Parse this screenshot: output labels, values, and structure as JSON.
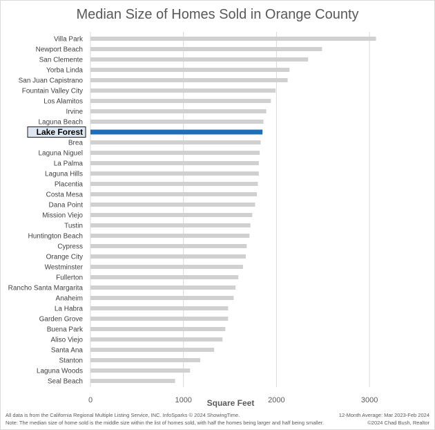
{
  "chart_data": {
    "type": "bar",
    "orientation": "horizontal",
    "title": "Median Size of Homes Sold in Orange County",
    "xlabel": "Square Feet",
    "ylabel": "",
    "xlim": [
      0,
      3200
    ],
    "xticks": [
      0,
      1000,
      2000,
      3000
    ],
    "gridlines": true,
    "highlight": "Lake Forest",
    "colors": {
      "bar": "#d0d0d0",
      "highlight": "#1f6fb8",
      "grid": "#d9d9d9"
    },
    "categories": [
      "Villa Park",
      "Newport Beach",
      "San Clemente",
      "Yorba Linda",
      "San Juan Capistrano",
      "Fountain Valley City",
      "Los Alamitos",
      "Irvine",
      "Laguna Beach",
      "Lake Forest",
      "Brea",
      "Laguna Niguel",
      "La Palma",
      "Laguna Hills",
      "Placentia",
      "Costa Mesa",
      "Dana Point",
      "Mission Viejo",
      "Tustin",
      "Huntington Beach",
      "Cypress",
      "Orange City",
      "Westminster",
      "Fullerton",
      "Rancho Santa Margarita",
      "Anaheim",
      "La Habra",
      "Garden Grove",
      "Buena Park",
      "Aliso Viejo",
      "Santa Ana",
      "Stanton",
      "Laguna Woods",
      "Seal Beach"
    ],
    "values": [
      3070,
      2490,
      2340,
      2140,
      2120,
      1990,
      1940,
      1890,
      1860,
      1850,
      1830,
      1820,
      1810,
      1810,
      1800,
      1790,
      1770,
      1740,
      1720,
      1710,
      1680,
      1670,
      1640,
      1590,
      1560,
      1540,
      1480,
      1480,
      1450,
      1420,
      1330,
      1180,
      1070,
      910
    ]
  },
  "footer": {
    "source": "All data is from the California Regional Multiple Listing Service, INC. InfoSparks © 2024 ShowingTime.",
    "period": "12-Month Average: Mar 2023-Feb 2024",
    "note": "Note: The median size of home sold is the middle size within the list of homes sold, with half the homes being larger and half being smaller.",
    "credit": "©2024 Chad Bush, Realtor"
  }
}
